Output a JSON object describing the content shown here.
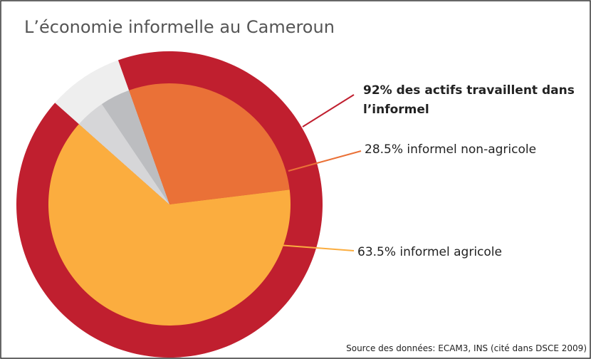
{
  "chart_data": {
    "type": "pie",
    "title": "L’économie informelle au Cameroun",
    "source": "Source des données: ECAM3, INS (cité dans DSCE 2009)",
    "outer": {
      "labels": [
        "92% des actifs travaillent dans l’informel",
        null
      ],
      "values": [
        92,
        8
      ],
      "colors": [
        "#c01f2f",
        "#eeeeee"
      ]
    },
    "inner": {
      "labels": [
        "28.5% informel non-agricole",
        "63.5% informel agricole",
        null,
        null
      ],
      "values": [
        28.5,
        63.5,
        4,
        4
      ],
      "colors": [
        "#ea7137",
        "#fbad3f",
        "#d6d6d8",
        "#bcbdc0"
      ]
    }
  }
}
